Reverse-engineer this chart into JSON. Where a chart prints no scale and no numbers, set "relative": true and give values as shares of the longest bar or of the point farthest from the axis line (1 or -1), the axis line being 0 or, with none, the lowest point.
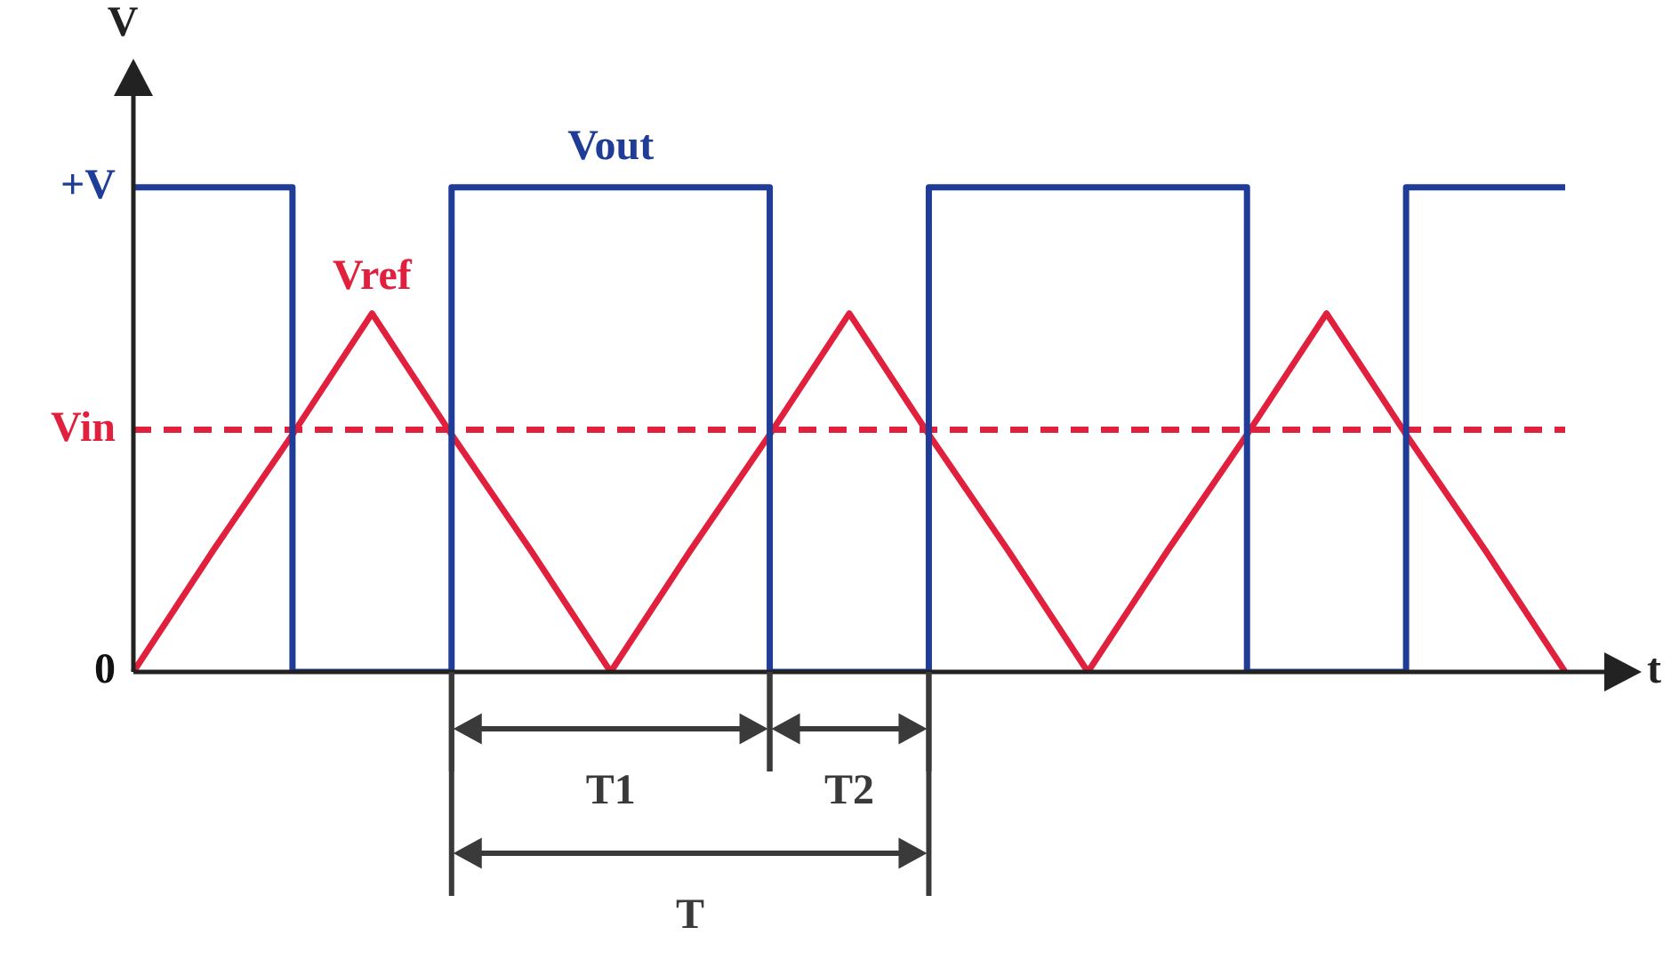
{
  "chart_data": {
    "type": "line",
    "relative": true,
    "xlabel": "t",
    "ylabel": "V",
    "legend": false,
    "marker": "none",
    "categories": [
      null,
      null,
      null,
      null,
      null,
      null,
      null,
      null,
      null,
      null,
      null,
      null,
      null,
      null,
      null,
      null,
      null,
      null,
      null
    ],
    "series": [
      {
        "name": "Vout",
        "type": "step",
        "color": "#1f3c96",
        "values": [
          1,
          1,
          0,
          0,
          1,
          1,
          1,
          1,
          0,
          0,
          1,
          1,
          1,
          1,
          0,
          0,
          1,
          1,
          1
        ]
      },
      {
        "name": "Vref",
        "color": "#e0203c",
        "values": [
          0,
          0.25,
          0.49,
          0.74,
          0.49,
          0.25,
          0,
          0.25,
          0.49,
          0.74,
          0.49,
          0.25,
          0,
          0.25,
          0.49,
          0.74,
          0.49,
          0.25,
          0
        ]
      },
      {
        "name": "Vin",
        "color": "#e0203c",
        "line_style": "dashed",
        "values": [
          0.5,
          0.5,
          0.5,
          0.5,
          0.5,
          0.5,
          0.5,
          0.5,
          0.5,
          0.5,
          0.5,
          0.5,
          0.5,
          0.5,
          0.5,
          0.5,
          0.5,
          0.5,
          0.5
        ]
      }
    ],
    "annotations": [
      "+V",
      "0",
      "T1",
      "T2",
      "T"
    ]
  }
}
